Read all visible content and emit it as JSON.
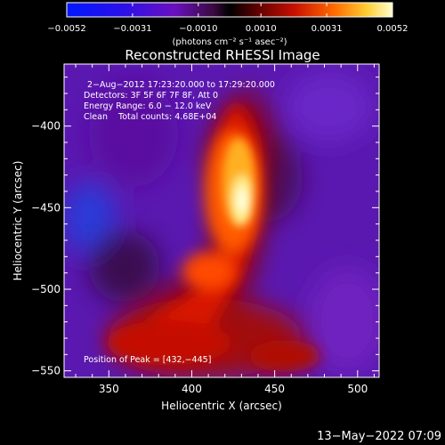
{
  "chart_data": {
    "type": "heatmap",
    "title": "Reconstructed RHESSI Image",
    "xlabel": "Heliocentric X (arcsec)",
    "ylabel": "Heliocentric Y (arcsec)",
    "xlim": [
      323,
      513
    ],
    "ylim": [
      -554,
      -362
    ],
    "x_ticks": [
      350,
      400,
      450,
      500
    ],
    "y_ticks": [
      -400,
      -450,
      -500,
      -550
    ],
    "x_tick_labels": [
      "350",
      "400",
      "450",
      "500"
    ],
    "y_tick_labels": [
      "−400",
      "−450",
      "−500",
      "−550"
    ],
    "colorbar": {
      "range": [
        -0.0052,
        0.0052
      ],
      "tick_values": [
        -0.0052,
        -0.0031,
        -0.001,
        0.001,
        0.0031,
        0.0052
      ],
      "tick_labels": [
        "−0.0052",
        "−0.0031",
        "−0.0010",
        "0.0010",
        "0.0031",
        "0.0052"
      ],
      "unit_label": "(photons cm⁻² s⁻¹ asec⁻²)"
    },
    "annotations": [
      "2−Aug−2012 17:23:20.000 to 17:29:20.000",
      "Detectors: 3F 5F 6F 7F 8F, Att 0",
      "Energy Range: 6.0 − 12.0 keV",
      "Clean    Total counts: 4.68E+04",
      "Position of Peak = [432,−445]"
    ],
    "peak": {
      "x": 432,
      "y": -445
    },
    "grid": false
  },
  "footer": {
    "timestamp": "13−May−2022 07:09"
  }
}
